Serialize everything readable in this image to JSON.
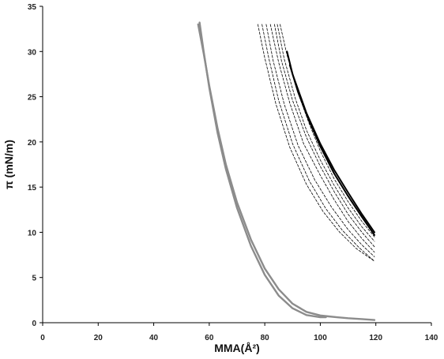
{
  "chart_data": {
    "type": "line",
    "title": "",
    "xlabel": "MMA(Å²)",
    "ylabel": "π (mN/m)",
    "xlim": [
      0,
      140
    ],
    "ylim": [
      0,
      35
    ],
    "x_ticks": [
      0,
      20,
      40,
      60,
      80,
      100,
      120,
      140
    ],
    "y_ticks": [
      0,
      5,
      10,
      15,
      20,
      25,
      30,
      35
    ],
    "grid": false,
    "legend": "none",
    "series": [
      {
        "style": "solid-gray",
        "color": "#8c8c8c",
        "x": [
          56.5,
          58,
          60,
          63,
          66,
          70,
          75,
          80,
          85,
          90,
          95,
          100,
          102
        ],
        "y": [
          33.2,
          30,
          26,
          21,
          17,
          12.7,
          8.5,
          5.3,
          3.0,
          1.6,
          0.85,
          0.6,
          0.6
        ]
      },
      {
        "style": "solid-gray",
        "color": "#8c8c8c",
        "x": [
          56,
          58,
          60,
          63,
          66,
          70,
          75,
          80,
          85,
          90,
          95,
          100,
          103,
          106,
          110,
          115,
          119.5
        ],
        "y": [
          33.0,
          29.8,
          26.2,
          21.5,
          17.5,
          13.3,
          9.2,
          6.0,
          3.7,
          2.1,
          1.2,
          0.8,
          0.7,
          0.6,
          0.5,
          0.4,
          0.3
        ]
      },
      {
        "style": "solid-black",
        "color": "#000000",
        "x": [
          88,
          90,
          95,
          100,
          105,
          110,
          115,
          119.5
        ],
        "y": [
          30,
          27.5,
          23.2,
          19.8,
          16.9,
          14.4,
          12.0,
          10.0
        ]
      },
      {
        "style": "solid-black",
        "color": "#000000",
        "x": [
          89,
          92,
          96,
          100,
          105,
          110,
          115,
          119.5
        ],
        "y": [
          28.5,
          25.5,
          22.3,
          19.5,
          16.5,
          14.0,
          11.7,
          9.7
        ]
      },
      {
        "style": "dashed-black",
        "color": "#000000",
        "x": [
          85.5,
          88,
          92,
          96,
          100,
          105,
          110,
          115,
          119.5
        ],
        "y": [
          33,
          29.6,
          25.4,
          22.0,
          19.0,
          15.9,
          13.4,
          11.2,
          9.5
        ]
      },
      {
        "style": "dashed-black",
        "color": "#000000",
        "x": [
          84.5,
          87,
          91,
          95,
          100,
          105,
          110,
          115,
          119.5
        ],
        "y": [
          33,
          29.2,
          24.8,
          21.3,
          18.0,
          15.2,
          12.7,
          10.6,
          9.0
        ]
      },
      {
        "style": "dashed-black",
        "color": "#000000",
        "x": [
          83.5,
          86,
          90,
          95,
          100,
          105,
          110,
          115,
          119.5
        ],
        "y": [
          33,
          29.0,
          24.6,
          20.5,
          17.3,
          14.5,
          12.0,
          10.0,
          8.4
        ]
      },
      {
        "style": "dashed-black",
        "color": "#000000",
        "x": [
          82,
          85,
          89,
          94,
          100,
          105,
          110,
          115,
          119.5
        ],
        "y": [
          33,
          28.8,
          24.3,
          19.8,
          16.3,
          13.6,
          11.2,
          9.3,
          7.8
        ]
      },
      {
        "style": "dashed-black",
        "color": "#000000",
        "x": [
          80.5,
          83,
          87,
          92,
          98,
          104,
          110,
          115,
          119.5
        ],
        "y": [
          33,
          29.0,
          24.2,
          19.6,
          15.8,
          12.8,
          10.3,
          8.6,
          7.3
        ]
      },
      {
        "style": "dashed-black",
        "color": "#000000",
        "x": [
          79,
          81.5,
          85,
          90,
          96,
          102,
          108,
          114,
          119.5
        ],
        "y": [
          33,
          29.2,
          24.6,
          19.8,
          15.7,
          12.6,
          10.2,
          8.3,
          6.8
        ]
      },
      {
        "style": "dashed-black",
        "color": "#000000",
        "x": [
          77.5,
          80,
          84,
          89,
          95,
          101,
          107,
          113,
          119.5
        ],
        "y": [
          33,
          29.3,
          24.2,
          19.4,
          15.3,
          12.3,
          10.0,
          8.2,
          6.8
        ]
      }
    ]
  }
}
